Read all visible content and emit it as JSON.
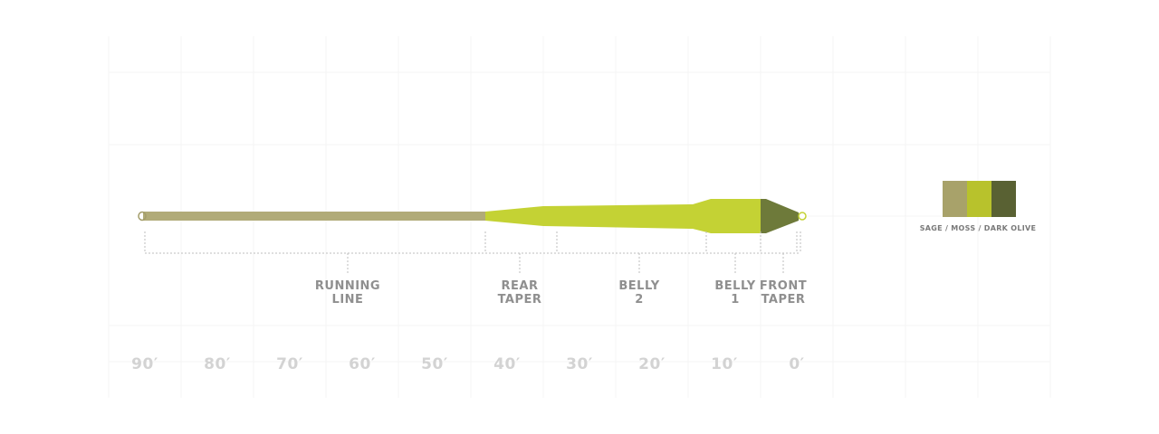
{
  "colors": {
    "running_line": "#b1ab78",
    "running_line_edge": "#a39d6a",
    "taper": "#c4d234",
    "front_taper": "#6e7a3a",
    "loop": "#ebebd4",
    "grid": "#f4f4f4",
    "dotted": "#bdbdbd",
    "swatch_sage": "#a8a26a",
    "swatch_moss": "#b8c22c",
    "swatch_dark_olive": "#596133"
  },
  "segments": [
    {
      "line1": "RUNNING",
      "line2": "LINE"
    },
    {
      "line1": "REAR",
      "line2": "TAPER"
    },
    {
      "line1": "BELLY",
      "line2": "2"
    },
    {
      "line1": "BELLY",
      "line2": "1"
    },
    {
      "line1": "FRONT",
      "line2": "TAPER"
    }
  ],
  "scale": [
    "90′",
    "80′",
    "70′",
    "60′",
    "50′",
    "40′",
    "30′",
    "20′",
    "10′",
    "0′"
  ],
  "legend": {
    "caption": "SAGE / MOSS / DARK OLIVE",
    "swatches": [
      "sage",
      "moss",
      "dark-olive"
    ]
  }
}
